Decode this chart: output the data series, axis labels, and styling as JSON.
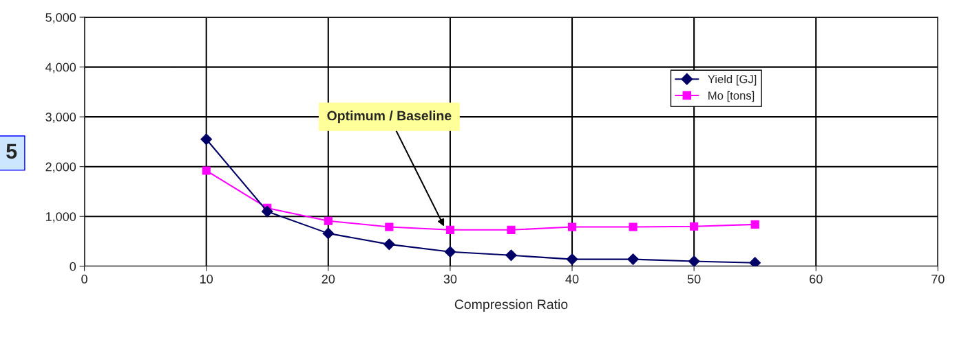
{
  "chart_data": {
    "type": "line",
    "xlabel": "Compression Ratio",
    "x": [
      10,
      15,
      20,
      25,
      30,
      35,
      40,
      45,
      50,
      55
    ],
    "series": [
      {
        "name": "Yield [GJ]",
        "color": "#000066",
        "marker": "diamond",
        "values": [
          2550,
          1100,
          660,
          440,
          290,
          220,
          140,
          140,
          100,
          70
        ]
      },
      {
        "name": "Mo [tons]",
        "color": "#ff00ff",
        "marker": "square",
        "values": [
          1920,
          1170,
          910,
          790,
          730,
          730,
          790,
          790,
          800,
          840
        ]
      }
    ],
    "xlim": [
      0,
      70
    ],
    "xticks": [
      0,
      10,
      20,
      30,
      40,
      50,
      60,
      70
    ],
    "ylim": [
      0,
      5000
    ],
    "yticks": [
      {
        "value": 0,
        "label": "0"
      },
      {
        "value": 1000,
        "label": "1,000"
      },
      {
        "value": 2000,
        "label": "2,000"
      },
      {
        "value": 3000,
        "label": "3,000"
      },
      {
        "value": 4000,
        "label": "4,000"
      },
      {
        "value": 5000,
        "label": "5,000"
      }
    ],
    "grid": true,
    "legend": "top right",
    "line_style": "solid",
    "annotations": [
      {
        "text": "Optimum / Baseline",
        "x": 29.5,
        "y": 800
      },
      "5"
    ]
  }
}
